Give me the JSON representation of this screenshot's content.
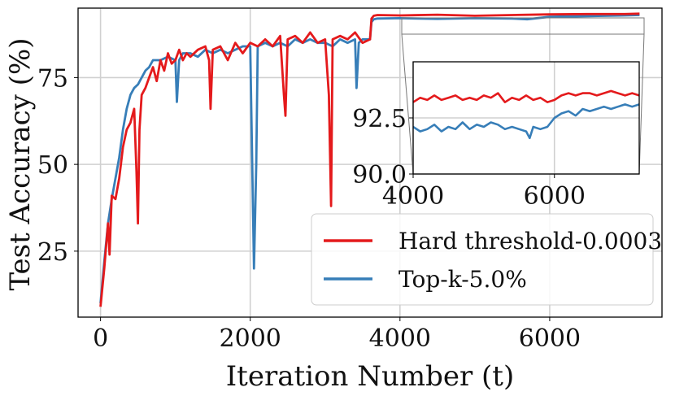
{
  "chart_data": {
    "type": "line",
    "xlabel": "Iteration Number (t)",
    "ylabel": "Test Accuracy (%)",
    "xlim": [
      -300,
      7500
    ],
    "ylim": [
      6,
      95
    ],
    "xticks": [
      0,
      2000,
      4000,
      6000
    ],
    "yticks": [
      25,
      50,
      75
    ],
    "xtick_labels": [
      "0",
      "2000",
      "4000",
      "6000"
    ],
    "ytick_labels": [
      "25",
      "50",
      "75"
    ],
    "grid": true,
    "legend_position": "lower-right",
    "colors": {
      "hard_threshold": "#e41a1c",
      "topk": "#377eb8"
    },
    "series": [
      {
        "name": "Hard threshold-0.0003",
        "color": "#e41a1c",
        "x": [
          0,
          50,
          100,
          120,
          150,
          200,
          250,
          300,
          350,
          400,
          450,
          480,
          500,
          520,
          550,
          600,
          650,
          700,
          750,
          800,
          850,
          900,
          950,
          1000,
          1050,
          1100,
          1150,
          1200,
          1300,
          1400,
          1450,
          1470,
          1500,
          1600,
          1700,
          1800,
          1900,
          2000,
          2100,
          2200,
          2300,
          2400,
          2450,
          2470,
          2500,
          2600,
          2700,
          2800,
          2900,
          3000,
          3050,
          3080,
          3100,
          3200,
          3300,
          3400,
          3500,
          3600,
          3620,
          3650,
          3700,
          4000,
          4500,
          5000,
          5500,
          6000,
          6500,
          7000,
          7200
        ],
        "values": [
          9,
          20,
          33,
          24,
          41,
          40,
          46,
          55,
          60,
          62,
          66,
          48,
          33,
          60,
          70,
          72,
          75,
          78,
          74,
          80,
          77,
          82,
          79,
          80,
          83,
          80,
          82,
          81,
          83,
          84,
          80,
          66,
          83,
          84,
          80,
          85,
          82,
          85,
          84,
          86,
          84,
          87,
          70,
          64,
          86,
          87,
          85,
          88,
          85,
          86,
          70,
          38,
          86,
          87,
          86,
          88,
          85,
          86,
          92,
          92.8,
          93,
          92.9,
          93.1,
          92.8,
          93.0,
          93.2,
          93.3,
          93.3,
          93.4
        ]
      },
      {
        "name": "Top-k-5.0%",
        "color": "#377eb8",
        "x": [
          0,
          50,
          100,
          150,
          200,
          250,
          300,
          350,
          400,
          450,
          500,
          550,
          600,
          650,
          700,
          800,
          900,
          1000,
          1020,
          1050,
          1100,
          1200,
          1300,
          1400,
          1500,
          1600,
          1700,
          1800,
          1900,
          2000,
          2050,
          2080,
          2100,
          2200,
          2300,
          2400,
          2500,
          2600,
          2700,
          2800,
          2900,
          3000,
          3100,
          3200,
          3300,
          3400,
          3420,
          3450,
          3500,
          3600,
          3620,
          3650,
          3700,
          4000,
          4500,
          5000,
          5500,
          5700,
          6000,
          6500,
          7000,
          7200
        ],
        "values": [
          10,
          22,
          33,
          40,
          46,
          52,
          60,
          66,
          70,
          72,
          73,
          75,
          77,
          78,
          80,
          80,
          81,
          80,
          68,
          80,
          82,
          82,
          81,
          83,
          82,
          83,
          82,
          83,
          84,
          84,
          20,
          50,
          84,
          85,
          84,
          85,
          84,
          86,
          85,
          86,
          85,
          85,
          84,
          86,
          85,
          86,
          72,
          85,
          86,
          86,
          91,
          91.8,
          92,
          92.1,
          91.9,
          92.1,
          92.0,
          91.8,
          92.5,
          92.7,
          92.9,
          93.0
        ]
      }
    ],
    "inset": {
      "xlim": [
        4000,
        7200
      ],
      "ylim": [
        90,
        95
      ],
      "xticks": [
        4000,
        6000
      ],
      "yticks": [
        90.0,
        92.5
      ],
      "xtick_labels": [
        "4000",
        "6000"
      ],
      "ytick_labels": [
        "90.0",
        "92.5"
      ],
      "series": [
        {
          "name": "Hard threshold-0.0003",
          "x": [
            4000,
            4100,
            4200,
            4300,
            4400,
            4500,
            4600,
            4700,
            4800,
            4900,
            5000,
            5100,
            5200,
            5300,
            5400,
            5500,
            5600,
            5700,
            5800,
            5900,
            6000,
            6100,
            6200,
            6300,
            6400,
            6500,
            6600,
            6700,
            6800,
            6900,
            7000,
            7100,
            7200
          ],
          "values": [
            93.2,
            93.4,
            93.3,
            93.5,
            93.3,
            93.4,
            93.5,
            93.3,
            93.4,
            93.3,
            93.5,
            93.4,
            93.6,
            93.2,
            93.4,
            93.3,
            93.5,
            93.3,
            93.4,
            93.2,
            93.3,
            93.5,
            93.6,
            93.5,
            93.6,
            93.6,
            93.5,
            93.6,
            93.7,
            93.6,
            93.5,
            93.6,
            93.5
          ]
        },
        {
          "name": "Top-k-5.0%",
          "x": [
            4000,
            4100,
            4200,
            4300,
            4400,
            4500,
            4600,
            4700,
            4800,
            4900,
            5000,
            5100,
            5200,
            5300,
            5400,
            5500,
            5600,
            5650,
            5700,
            5800,
            5900,
            6000,
            6100,
            6200,
            6300,
            6400,
            6500,
            6600,
            6700,
            6800,
            6900,
            7000,
            7100,
            7200
          ],
          "values": [
            92.1,
            91.9,
            92.0,
            92.2,
            91.9,
            92.1,
            92.0,
            92.3,
            92.0,
            92.2,
            92.1,
            92.3,
            92.2,
            92.0,
            92.1,
            92.0,
            91.9,
            91.6,
            92.1,
            92.0,
            92.1,
            92.5,
            92.7,
            92.8,
            92.6,
            92.9,
            92.8,
            92.9,
            93.0,
            92.9,
            93.0,
            93.1,
            93.0,
            93.1
          ]
        }
      ]
    },
    "legend": [
      {
        "label": "Hard threshold-0.0003",
        "color": "#e41a1c"
      },
      {
        "label": "Top-k-5.0%",
        "color": "#377eb8"
      }
    ]
  }
}
